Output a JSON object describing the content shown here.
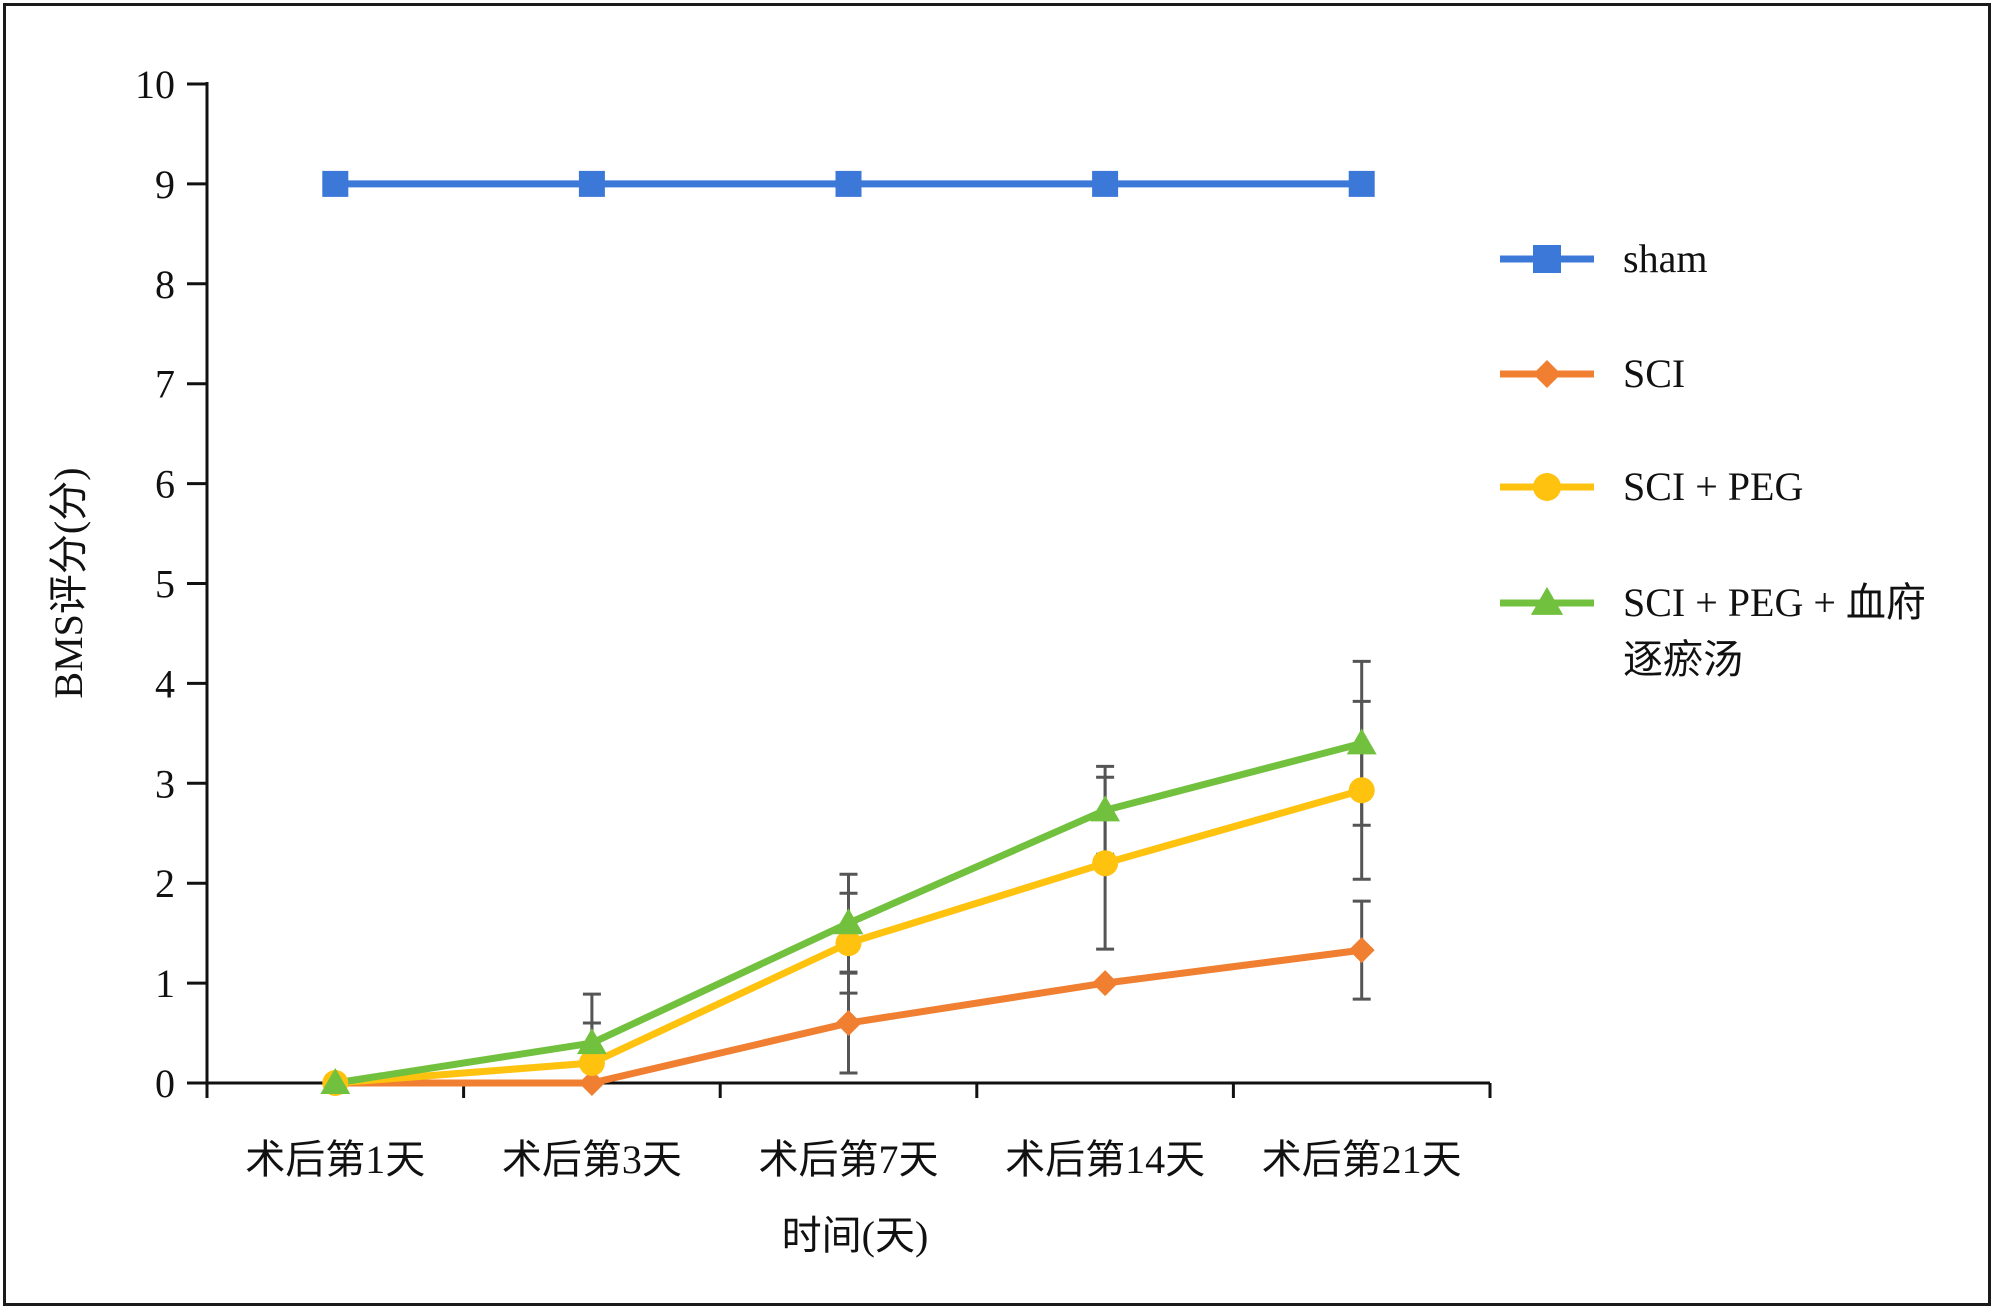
{
  "chart_data": {
    "type": "line",
    "title": "",
    "xlabel": "时间(天)",
    "ylabel": "BMS评分(分)",
    "ylim": [
      0,
      10
    ],
    "yticks": [
      0,
      1,
      2,
      3,
      4,
      5,
      6,
      7,
      8,
      9,
      10
    ],
    "categories": [
      "术后第1天",
      "术后第3天",
      "术后第7天",
      "术后第14天",
      "术后第21天"
    ],
    "legend_position": "right",
    "grid": false,
    "series": [
      {
        "name": "sham",
        "color": "#3C78D8",
        "marker": "square",
        "values": [
          9,
          9,
          9,
          9,
          9
        ],
        "errors": [
          0,
          0,
          0,
          0,
          0
        ]
      },
      {
        "name": "SCI",
        "color": "#F07F32",
        "marker": "diamond",
        "values": [
          0,
          0,
          0.6,
          1.0,
          1.33
        ],
        "errors": [
          0,
          0,
          0.5,
          0,
          0.49
        ]
      },
      {
        "name": "SCI + PEG",
        "color": "#FFC20E",
        "marker": "circle",
        "values": [
          0,
          0.2,
          1.4,
          2.2,
          2.93
        ],
        "errors": [
          0,
          0.4,
          0.5,
          0.86,
          0.89
        ]
      },
      {
        "name": "SCI + PEG + 血府逐瘀汤",
        "legend_lines": [
          "SCI + PEG + 血府",
          "逐瘀汤"
        ],
        "color": "#72C13E",
        "marker": "triangle",
        "values": [
          0,
          0.4,
          1.6,
          2.73,
          3.4
        ],
        "errors": [
          0,
          0.49,
          0.49,
          0.44,
          0.82
        ]
      }
    ]
  }
}
